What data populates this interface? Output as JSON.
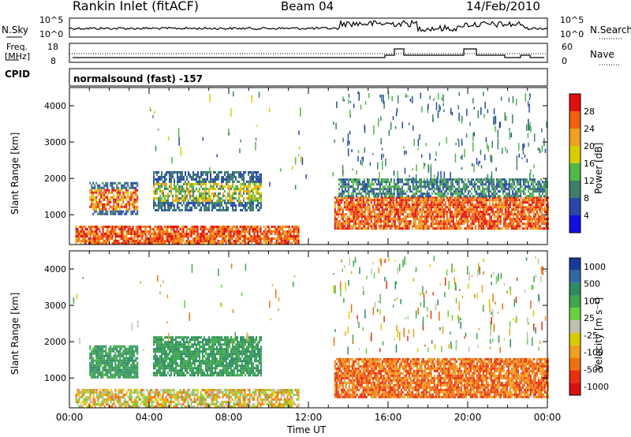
{
  "header": {
    "station": "Rankin Inlet (fitACF)",
    "beam": "Beam 04",
    "date": "14/Feb/2010"
  },
  "noise_panel": {
    "left_label": "N.Sky",
    "right_label": "N.Search",
    "left_ticks": [
      "10^5",
      "10^0"
    ],
    "right_ticks": [
      "10^5",
      "10^0"
    ]
  },
  "freq_panel": {
    "left_label_line1": "Freq.",
    "left_label_line2": "[MHz]",
    "right_label": "Nave",
    "left_ticks": [
      "18",
      "8"
    ],
    "right_ticks": [
      "60",
      "0"
    ]
  },
  "cpid_panel": {
    "label": "CPID",
    "program": "normalsound (fast) -157"
  },
  "power_panel": {
    "ylabel": "Slant Range [km]",
    "yticks": [
      "1000",
      "2000",
      "3000",
      "4000"
    ],
    "colorbar_label": "Power [dB]",
    "colorbar_ticks": [
      "4",
      "8",
      "12",
      "16",
      "20",
      "24",
      "28"
    ],
    "colors": [
      "#1010e0",
      "#2848a8",
      "#3e7f6a",
      "#52b848",
      "#d8cc00",
      "#f0a020",
      "#f06010",
      "#e01010"
    ]
  },
  "velocity_panel": {
    "ylabel": "Slant Range [km]",
    "yticks": [
      "1000",
      "2000",
      "3000",
      "4000"
    ],
    "colorbar_label": "Velocity [m s⁻¹]",
    "colorbar_ticks": [
      "1000",
      "500",
      "100",
      "25",
      "-25",
      "-100",
      "-500",
      "-1000"
    ],
    "colors": [
      "#1a3a9a",
      "#2f6aa0",
      "#2c8a64",
      "#3fa84a",
      "#6ad040",
      "#c0c0b0",
      "#d8cc00",
      "#f0a020",
      "#f07010",
      "#e83010",
      "#d81010"
    ]
  },
  "xaxis": {
    "ticks": [
      "00:00",
      "04:00",
      "08:00",
      "12:00",
      "16:00",
      "20:00",
      "00:00"
    ],
    "label": "Time UT"
  },
  "chart_data": {
    "type": "heatmap",
    "x_range_hours": [
      0,
      24
    ],
    "y_range_km": [
      180,
      4500
    ],
    "power_colorbar_range_db": [
      0,
      32
    ],
    "velocity_colorbar_range_ms": [
      -1000,
      1000
    ],
    "bands": [
      {
        "panel": "power",
        "t0": 1.0,
        "t1": 3.4,
        "r0": 1000,
        "r1": 1900,
        "level": "mid-high"
      },
      {
        "panel": "power",
        "t0": 4.2,
        "t1": 9.6,
        "r0": 1150,
        "r1": 2200,
        "level": "mid"
      },
      {
        "panel": "power",
        "t0": 0.3,
        "t1": 11.5,
        "r0": 200,
        "r1": 700,
        "level": "high"
      },
      {
        "panel": "power",
        "t0": 13.3,
        "t1": 24.0,
        "r0": 600,
        "r1": 1500,
        "level": "high"
      },
      {
        "panel": "power",
        "t0": 13.5,
        "t1": 24.0,
        "r0": 1500,
        "r1": 2000,
        "level": "low"
      },
      {
        "panel": "velocity",
        "t0": 1.0,
        "t1": 3.4,
        "r0": 1000,
        "r1": 1900,
        "level": "positive-small"
      },
      {
        "panel": "velocity",
        "t0": 4.2,
        "t1": 9.6,
        "r0": 1100,
        "r1": 2150,
        "level": "positive-small"
      },
      {
        "panel": "velocity",
        "t0": 13.3,
        "t1": 24.0,
        "r0": 500,
        "r1": 1550,
        "level": "negative-medium"
      }
    ]
  }
}
